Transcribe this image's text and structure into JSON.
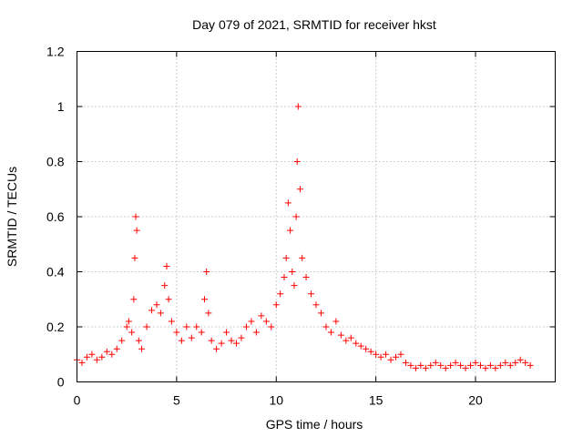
{
  "chart_data": {
    "type": "scatter",
    "title": "Day 079 of 2021, SRMTID for receiver hkst",
    "xlabel": "GPS time / hours",
    "ylabel": "SRMTID / TECUs",
    "xlim": [
      0,
      24
    ],
    "ylim": [
      0,
      1.2
    ],
    "x_ticks": [
      0,
      5,
      10,
      15,
      20
    ],
    "x_tick_labels": [
      "0",
      "5",
      "10",
      "15",
      "20"
    ],
    "y_ticks": [
      0,
      0.2,
      0.4,
      0.6,
      0.8,
      1.0,
      1.2
    ],
    "y_tick_labels": [
      "0",
      "0.2",
      "0.4",
      "0.6",
      "0.8",
      "1",
      "1.2"
    ],
    "grid": true,
    "marker": "plus",
    "color": "#ff0000",
    "series": [
      {
        "name": "hkst",
        "x": [
          0.0,
          0.25,
          0.5,
          0.75,
          1.0,
          1.25,
          1.5,
          1.75,
          2.0,
          2.25,
          2.5,
          2.6,
          2.75,
          2.85,
          2.9,
          2.95,
          3.0,
          3.1,
          3.25,
          3.5,
          3.75,
          4.0,
          4.2,
          4.4,
          4.5,
          4.6,
          4.75,
          5.0,
          5.25,
          5.5,
          5.75,
          6.0,
          6.25,
          6.4,
          6.5,
          6.6,
          6.75,
          7.0,
          7.25,
          7.5,
          7.75,
          8.0,
          8.25,
          8.5,
          8.75,
          9.0,
          9.25,
          9.5,
          9.75,
          10.0,
          10.2,
          10.4,
          10.5,
          10.6,
          10.7,
          10.8,
          10.9,
          11.0,
          11.05,
          11.1,
          11.2,
          11.3,
          11.5,
          11.75,
          12.0,
          12.25,
          12.5,
          12.75,
          13.0,
          13.25,
          13.5,
          13.75,
          14.0,
          14.25,
          14.5,
          14.75,
          15.0,
          15.25,
          15.5,
          15.75,
          16.0,
          16.25,
          16.5,
          16.75,
          17.0,
          17.25,
          17.5,
          17.75,
          18.0,
          18.25,
          18.5,
          18.75,
          19.0,
          19.25,
          19.5,
          19.75,
          20.0,
          20.25,
          20.5,
          20.75,
          21.0,
          21.25,
          21.5,
          21.75,
          22.0,
          22.25,
          22.5,
          22.75
        ],
        "y": [
          0.08,
          0.07,
          0.09,
          0.1,
          0.08,
          0.09,
          0.11,
          0.1,
          0.12,
          0.15,
          0.2,
          0.22,
          0.18,
          0.3,
          0.45,
          0.6,
          0.55,
          0.15,
          0.12,
          0.2,
          0.26,
          0.28,
          0.25,
          0.35,
          0.42,
          0.3,
          0.22,
          0.18,
          0.15,
          0.2,
          0.16,
          0.2,
          0.18,
          0.3,
          0.4,
          0.25,
          0.15,
          0.12,
          0.14,
          0.18,
          0.15,
          0.14,
          0.16,
          0.2,
          0.22,
          0.18,
          0.24,
          0.22,
          0.2,
          0.28,
          0.32,
          0.38,
          0.45,
          0.65,
          0.55,
          0.4,
          0.35,
          0.6,
          0.8,
          1.0,
          0.7,
          0.45,
          0.38,
          0.32,
          0.28,
          0.25,
          0.2,
          0.18,
          0.22,
          0.17,
          0.15,
          0.16,
          0.14,
          0.13,
          0.12,
          0.11,
          0.1,
          0.09,
          0.1,
          0.08,
          0.09,
          0.1,
          0.07,
          0.06,
          0.05,
          0.06,
          0.05,
          0.06,
          0.07,
          0.06,
          0.05,
          0.06,
          0.07,
          0.06,
          0.05,
          0.06,
          0.07,
          0.06,
          0.05,
          0.06,
          0.05,
          0.06,
          0.07,
          0.06,
          0.07,
          0.08,
          0.07,
          0.06
        ]
      }
    ]
  }
}
